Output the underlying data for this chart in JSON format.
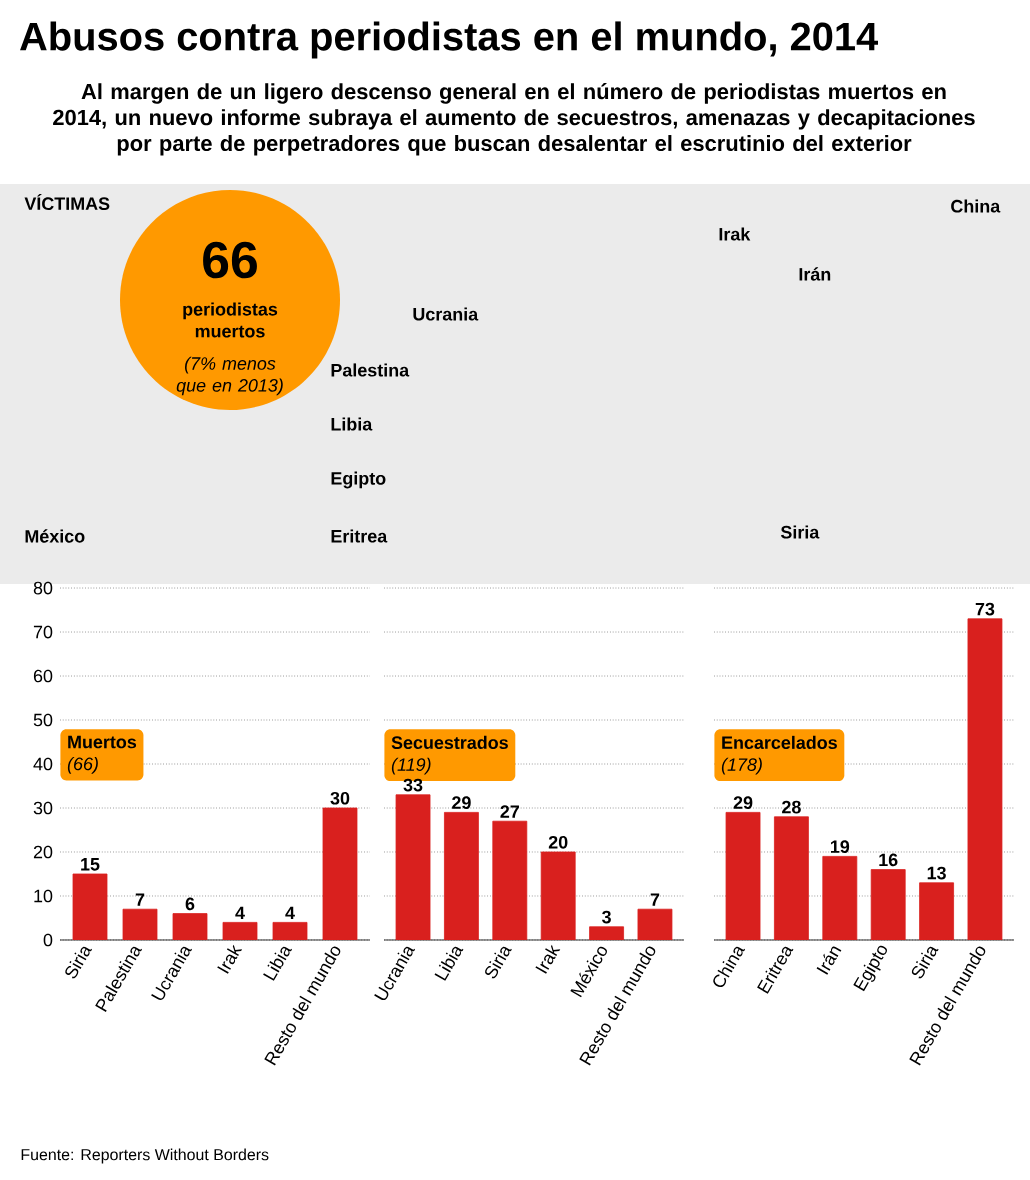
{
  "chart_data": [
    {
      "type": "other",
      "title": "Abusos contra periodistas en el mundo, 2014",
      "subtitle": "Al margen de un ligero descenso general en el número de periodistas muertos en 2014, un nuevo informe subraya el aumento de secuestros, amenazas y decapitaciones por parte de perpetradores que buscan desalentar el escrutinio del exterior",
      "annotations": [
        "VÍCTIMAS",
        "66",
        "periodistas muertos",
        "(7% menos que en 2013)",
        "Ucrania",
        "Palestina",
        "Libia",
        "Egipto",
        "Eritrea",
        "Irak",
        "Irán",
        "China",
        "México",
        "Siria",
        "Fuente: Reporters Without Borders"
      ]
    },
    {
      "type": "bar",
      "title": "Muertos",
      "subtitle": "(66)",
      "categories": [
        "Siria",
        "Palestina",
        "Ucrania",
        "Irak",
        "Libia",
        "Resto del mundo"
      ],
      "values": [
        15,
        7,
        6,
        4,
        4,
        30
      ],
      "color": "#d9201e",
      "ylim": [
        0,
        80
      ],
      "yticks": [
        0,
        10,
        20,
        30,
        40,
        50,
        60,
        70,
        80
      ],
      "grid": "y",
      "data_labels": true
    },
    {
      "type": "bar",
      "title": "Secuestrados",
      "subtitle": "(119)",
      "categories": [
        "Ucrania",
        "Libia",
        "Siria",
        "Irak",
        "México",
        "Resto del mundo"
      ],
      "values": [
        33,
        29,
        27,
        20,
        3,
        7
      ],
      "color": "#d9201e",
      "ylim": [
        0,
        80
      ],
      "yticks": [
        0,
        10,
        20,
        30,
        40,
        50,
        60,
        70,
        80
      ],
      "grid": "y",
      "data_labels": true,
      "tick_labels": "x"
    },
    {
      "type": "bar",
      "title": "Encarcelados",
      "subtitle": "(178)",
      "categories": [
        "China",
        "Eritrea",
        "Irán",
        "Egipto",
        "Siria",
        "Resto del mundo"
      ],
      "values": [
        29,
        28,
        19,
        16,
        13,
        73
      ],
      "color": "#d9201e",
      "ylim": [
        0,
        80
      ],
      "yticks": [
        0,
        10,
        20,
        30,
        40,
        50,
        60,
        70,
        80
      ],
      "grid": "y",
      "data_labels": true,
      "tick_labels": "x"
    }
  ]
}
